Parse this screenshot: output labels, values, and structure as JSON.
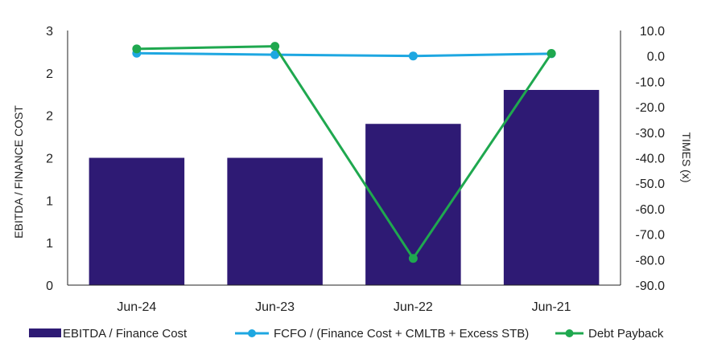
{
  "chart_data": {
    "type": "bar+line",
    "categories": [
      "Jun-24",
      "Jun-23",
      "Jun-22",
      "Jun-21"
    ],
    "ylabel_left": "EBITDA / FINANCE COST",
    "ylabel_right": "TIMES (x)",
    "left_axis": {
      "range": [
        0,
        3
      ],
      "ticks": [
        0,
        0.5,
        1,
        1.5,
        2,
        2.5,
        3
      ],
      "tick_labels": [
        "0",
        "1",
        "1",
        "2",
        "2",
        "2",
        "3"
      ]
    },
    "right_axis": {
      "range": [
        -90,
        10
      ],
      "ticks": [
        10,
        0,
        -10,
        -20,
        -30,
        -40,
        -50,
        -60,
        -70,
        -80,
        -90
      ],
      "tick_labels": [
        "10.0",
        "0.0",
        "-10.0",
        "-20.0",
        "-30.0",
        "-40.0",
        "-50.0",
        "-60.0",
        "-70.0",
        "-80.0",
        "-90.0"
      ]
    },
    "grid": false,
    "legend_position": "bottom",
    "series": [
      {
        "name": "EBITDA / Finance Cost",
        "type": "bar",
        "axis": "left",
        "color": "#2E1A74",
        "values": [
          1.5,
          1.5,
          1.9,
          2.3
        ]
      },
      {
        "name": "FCFO / (Finance Cost + CMLTB + Excess STB)",
        "type": "line",
        "axis": "right",
        "color": "#1EA7E1",
        "values": [
          1.1,
          0.5,
          0.0,
          0.9
        ]
      },
      {
        "name": "Debt Payback",
        "type": "line",
        "axis": "right",
        "color": "#1FA84F",
        "values": [
          2.8,
          3.8,
          -79.5,
          1.0
        ]
      }
    ]
  }
}
